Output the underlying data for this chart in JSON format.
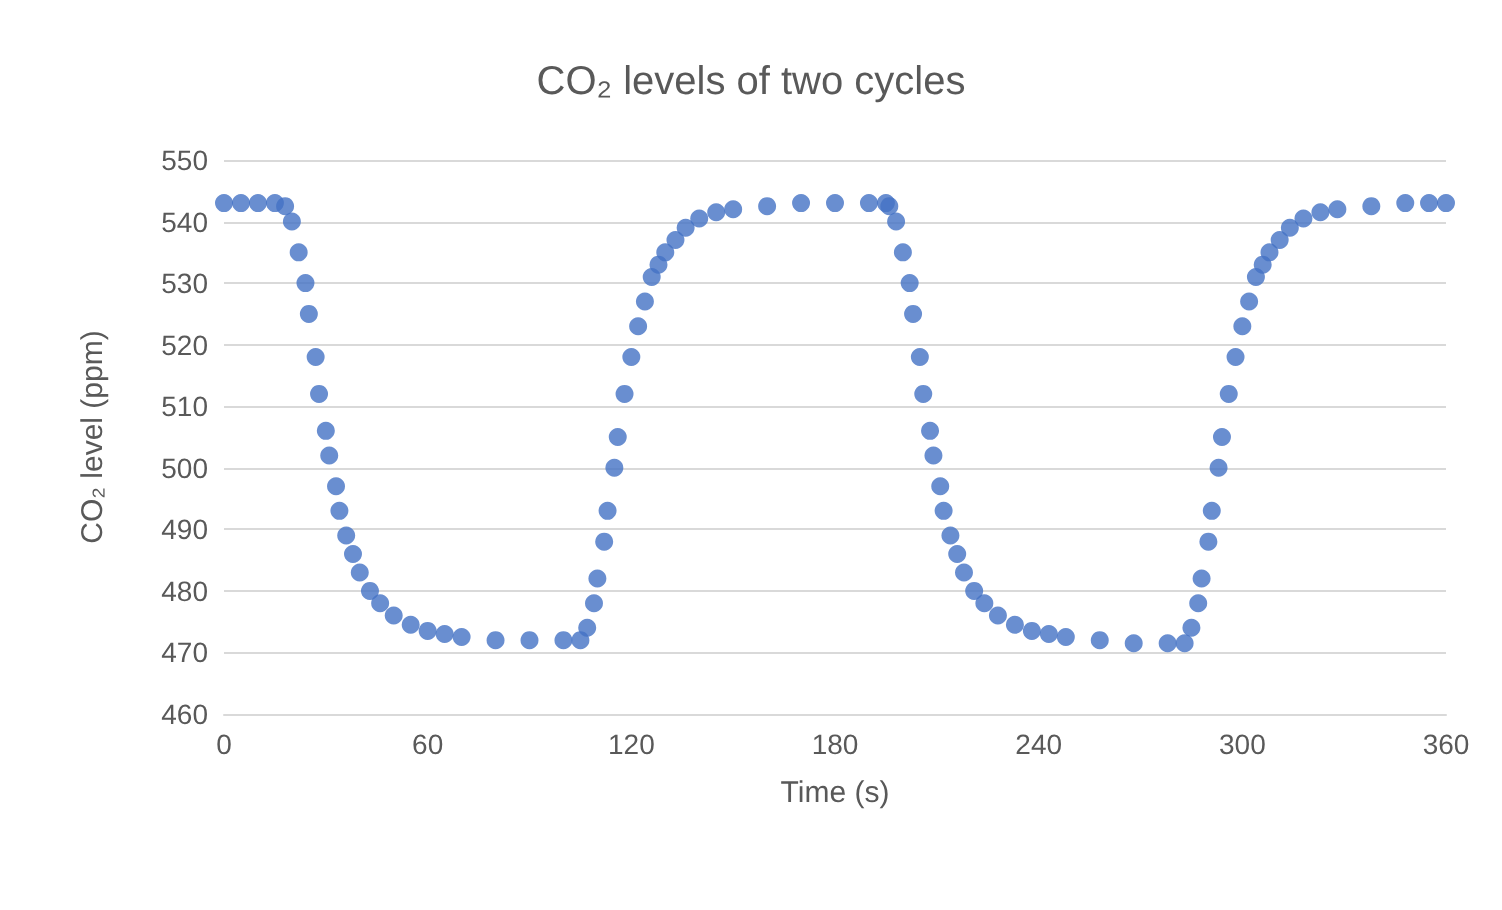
{
  "chart_data": {
    "type": "scatter",
    "title": "CO₂ levels of two cycles",
    "xlabel": "Time (s)",
    "ylabel": "CO₂ level (ppm)",
    "x": [
      0,
      5,
      10,
      15,
      18,
      20,
      22,
      24,
      25,
      27,
      28,
      30,
      31,
      33,
      34,
      36,
      38,
      40,
      43,
      46,
      50,
      55,
      60,
      65,
      70,
      80,
      90,
      100,
      105,
      107,
      109,
      110,
      112,
      113,
      115,
      116,
      118,
      120,
      122,
      124,
      126,
      128,
      130,
      133,
      136,
      140,
      145,
      150,
      160,
      170,
      180,
      190,
      195,
      196,
      198,
      200,
      202,
      203,
      205,
      206,
      208,
      209,
      211,
      212,
      214,
      216,
      218,
      221,
      224,
      228,
      233,
      238,
      243,
      248,
      258,
      268,
      278,
      283,
      285,
      287,
      288,
      290,
      291,
      293,
      294,
      296,
      298,
      300,
      302,
      304,
      306,
      308,
      311,
      314,
      318,
      323,
      328,
      338,
      348,
      355,
      360
    ],
    "series": [
      {
        "color": "#4472c4",
        "values": [
          543,
          543,
          543,
          543,
          542.5,
          540,
          535,
          530,
          525,
          518,
          512,
          506,
          502,
          497,
          493,
          489,
          486,
          483,
          480,
          478,
          476,
          474.5,
          473.5,
          473,
          472.5,
          472,
          472,
          472,
          472,
          474,
          478,
          482,
          488,
          493,
          500,
          505,
          512,
          518,
          523,
          527,
          531,
          533,
          535,
          537,
          539,
          540.5,
          541.5,
          542,
          542.5,
          543,
          543,
          543,
          543,
          542.5,
          540,
          535,
          530,
          525,
          518,
          512,
          506,
          502,
          497,
          493,
          489,
          486,
          483,
          480,
          478,
          476,
          474.5,
          473.5,
          473,
          472.5,
          472,
          471.5,
          471.5,
          471.5,
          474,
          478,
          482,
          488,
          493,
          500,
          505,
          512,
          518,
          523,
          527,
          531,
          533,
          535,
          537,
          539,
          540.5,
          541.5,
          542,
          542.5,
          543,
          543,
          543
        ]
      }
    ],
    "xlim": [
      0,
      360
    ],
    "xticks": [
      0,
      60,
      120,
      180,
      240,
      300,
      360
    ],
    "ylim": [
      460,
      550
    ],
    "yticks": [
      460,
      470,
      480,
      490,
      500,
      510,
      520,
      530,
      540,
      550
    ],
    "grid": "y",
    "marker": "circle"
  }
}
